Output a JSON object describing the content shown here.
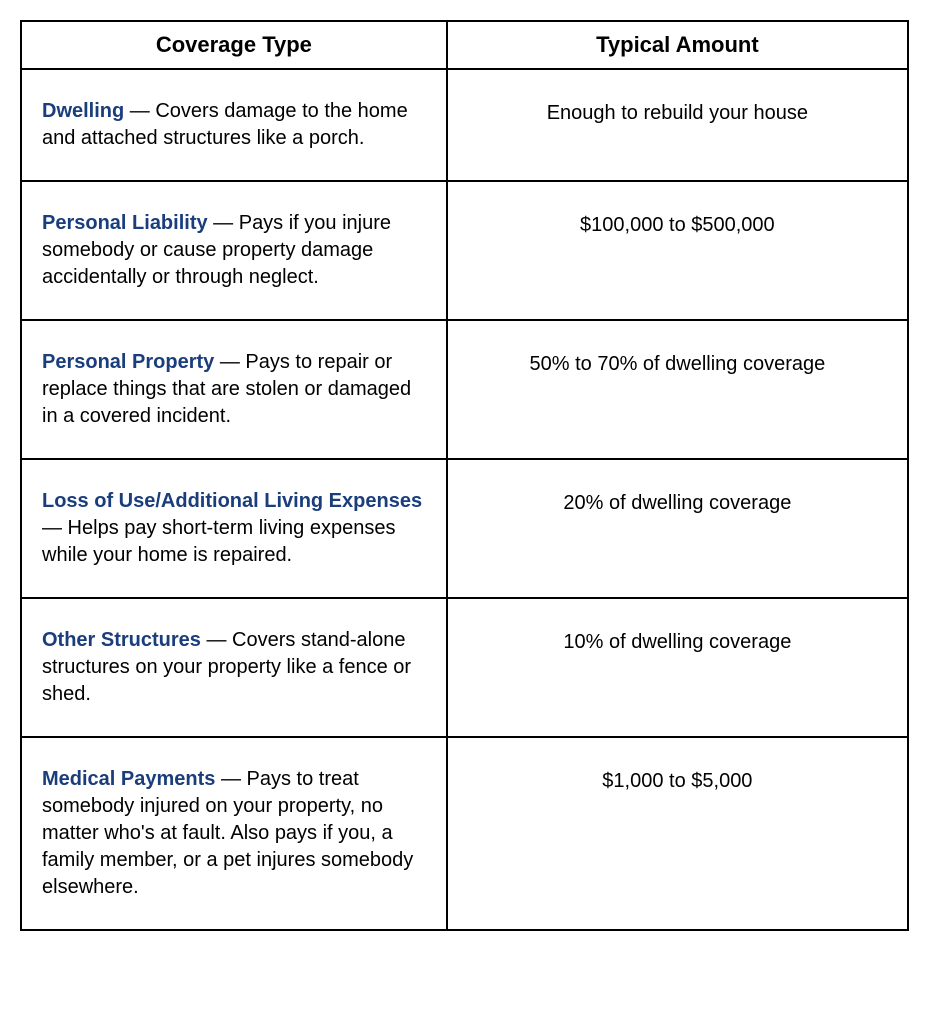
{
  "table": {
    "columns": [
      "Coverage Type",
      "Typical Amount"
    ],
    "column_widths": [
      "48%",
      "52%"
    ],
    "border_color": "#000000",
    "background_color": "#ffffff",
    "header_fontsize": 22,
    "body_fontsize": 20,
    "link_color": "#1a3d7c",
    "text_color": "#000000",
    "rows": [
      {
        "term": "Dwelling",
        "description": " — Covers damage to the home and attached structures like a porch.",
        "amount": "Enough to rebuild your house"
      },
      {
        "term": "Personal Liability",
        "description": " — Pays if you injure somebody or cause property damage accidentally or through neglect.",
        "amount": "$100,000 to $500,000"
      },
      {
        "term": "Personal Property",
        "description": " — Pays to repair or replace things that are stolen or damaged in a covered incident.",
        "amount": "50% to 70% of dwelling coverage"
      },
      {
        "term": "Loss of Use/Additional Living Expenses",
        "description": " — Helps pay short-term living expenses while your home is repaired.",
        "amount": "20% of dwelling coverage"
      },
      {
        "term": "Other Structures",
        "description": " — Covers stand-alone structures on your property like a fence or shed.",
        "amount": "10% of dwelling coverage"
      },
      {
        "term": "Medical Payments",
        "description": " — Pays to treat somebody injured on your property, no matter who's at fault. Also pays if you, a family member, or a pet injures somebody elsewhere.",
        "amount": "$1,000 to $5,000"
      }
    ]
  }
}
